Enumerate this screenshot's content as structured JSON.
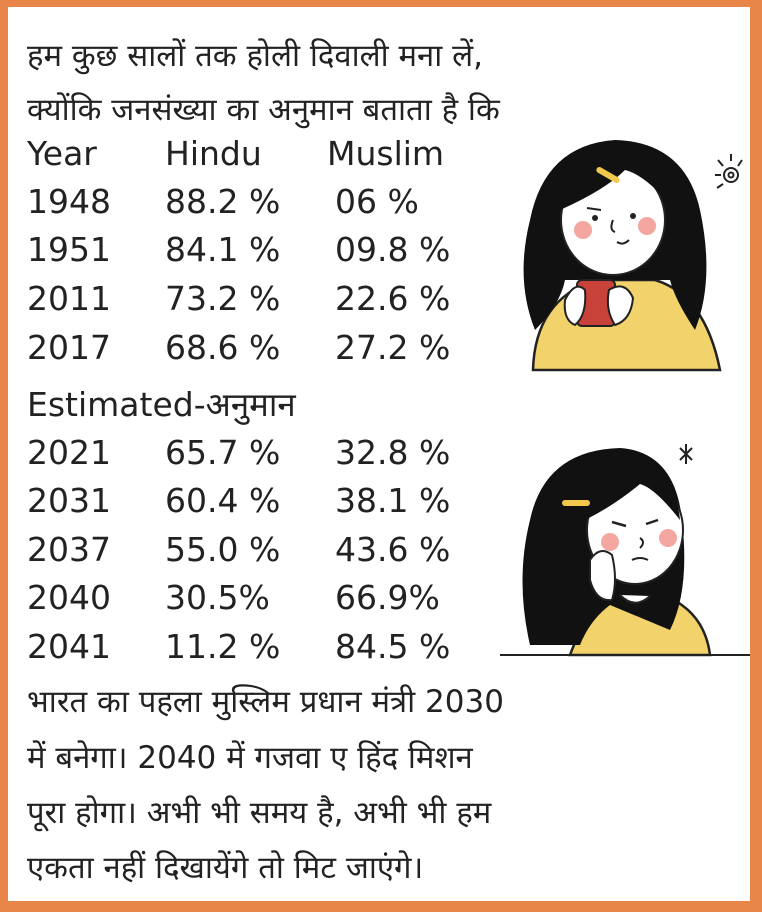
{
  "intro": [
    "हम कुछ सालों तक होली दिवाली मना लें,",
    "क्योंकि जनसंख्या का अनुमान बताता है कि"
  ],
  "table": {
    "headers": [
      "Year",
      "Hindu",
      "Muslim"
    ],
    "rows": [
      [
        "1948",
        "88.2 %",
        "06 %"
      ],
      [
        "1951",
        "84.1 %",
        "09.8 %"
      ],
      [
        "2011",
        "73.2 %",
        "22.6 %"
      ],
      [
        "2017",
        "68.6 %",
        "27.2 %"
      ]
    ],
    "estimated_label": "Estimated-अनुमान",
    "estimated_rows": [
      [
        "2021",
        "65.7 %",
        "32.8 %"
      ],
      [
        "2031",
        "60.4 %",
        "38.1 %"
      ],
      [
        "2037",
        "55.0 %",
        "43.6 %"
      ],
      [
        "2040",
        "30.5%",
        "66.9%"
      ],
      [
        "2041",
        "11.2 %",
        "84.5 %"
      ]
    ]
  },
  "outro": [
    "भारत का पहला मुस्लिम प्रधान मंत्री 2030",
    "में बनेगा। 2040 में गजवा ए हिंद मिशन",
    "पूरा होगा। अभी भी समय है, अभी भी हम",
    "एकता नहीं दिखायेंगे तो मिट जाएंगे।"
  ],
  "colors": {
    "border": "#e8864a",
    "hair": "#111111",
    "sweater": "#f2d36b",
    "cup": "#c8423a",
    "cheek": "#f4a7a0",
    "hairclip": "#f2c94c"
  }
}
